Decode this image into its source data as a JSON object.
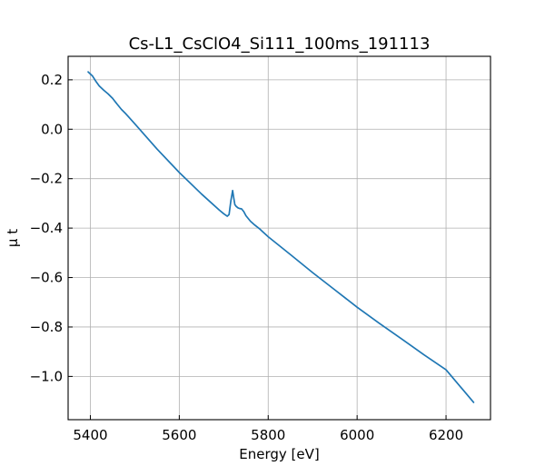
{
  "chart_data": {
    "type": "line",
    "title": "Cs-L1_CsClO4_Si111_100ms_191113",
    "xlabel": "Energy [eV]",
    "ylabel": "μ t",
    "xlim": [
      5350,
      6300
    ],
    "ylim": [
      -1.175,
      0.295
    ],
    "xticks": [
      5400,
      5600,
      5800,
      6000,
      6200
    ],
    "xtick_labels": [
      "5400",
      "5600",
      "5800",
      "6000",
      "6200"
    ],
    "yticks": [
      0.2,
      0.0,
      -0.2,
      -0.4,
      -0.6,
      -0.8,
      -1.0
    ],
    "ytick_labels": [
      "0.2",
      "0.0",
      "−0.2",
      "−0.4",
      "−0.6",
      "−0.8",
      "−1.0"
    ],
    "grid": true,
    "series": [
      {
        "name": "Cs-L1_CsClO4_Si111_100ms_191113",
        "color": "#1f77b4",
        "x": [
          5395,
          5405,
          5412,
          5420,
          5430,
          5440,
          5450,
          5460,
          5470,
          5480,
          5500,
          5550,
          5600,
          5650,
          5690,
          5700,
          5708,
          5712,
          5716,
          5720,
          5722,
          5725,
          5728,
          5732,
          5736,
          5740,
          5745,
          5750,
          5760,
          5770,
          5780,
          5800,
          5850,
          5900,
          5950,
          6000,
          6050,
          6100,
          6150,
          6200,
          6262
        ],
        "y": [
          0.232,
          0.215,
          0.195,
          0.175,
          0.158,
          0.143,
          0.125,
          0.102,
          0.08,
          0.062,
          0.022,
          -0.08,
          -0.175,
          -0.262,
          -0.327,
          -0.342,
          -0.352,
          -0.345,
          -0.29,
          -0.248,
          -0.272,
          -0.305,
          -0.312,
          -0.318,
          -0.321,
          -0.322,
          -0.333,
          -0.35,
          -0.372,
          -0.388,
          -0.402,
          -0.435,
          -0.507,
          -0.58,
          -0.65,
          -0.72,
          -0.785,
          -0.848,
          -0.912,
          -0.973,
          -1.105
        ]
      }
    ]
  }
}
